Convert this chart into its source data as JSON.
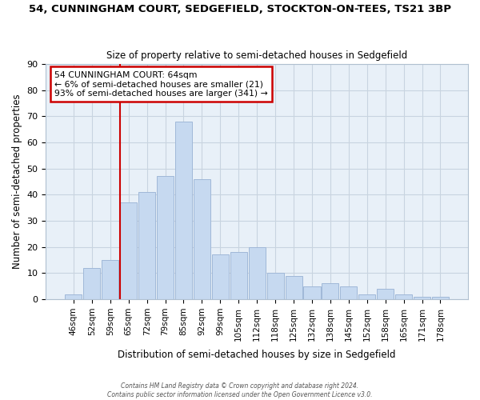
{
  "title_line1": "54, CUNNINGHAM COURT, SEDGEFIELD, STOCKTON-ON-TEES, TS21 3BP",
  "title_line2": "Size of property relative to semi-detached houses in Sedgefield",
  "xlabel": "Distribution of semi-detached houses by size in Sedgefield",
  "ylabel": "Number of semi-detached properties",
  "footer_line1": "Contains HM Land Registry data © Crown copyright and database right 2024.",
  "footer_line2": "Contains public sector information licensed under the Open Government Licence v3.0.",
  "bar_labels": [
    "46sqm",
    "52sqm",
    "59sqm",
    "65sqm",
    "72sqm",
    "79sqm",
    "85sqm",
    "92sqm",
    "99sqm",
    "105sqm",
    "112sqm",
    "118sqm",
    "125sqm",
    "132sqm",
    "138sqm",
    "145sqm",
    "152sqm",
    "158sqm",
    "165sqm",
    "171sqm",
    "178sqm"
  ],
  "bar_values": [
    2,
    12,
    15,
    37,
    41,
    47,
    68,
    46,
    17,
    18,
    20,
    10,
    9,
    5,
    6,
    5,
    2,
    4,
    2,
    1,
    1
  ],
  "bar_color": "#c6d9f0",
  "bar_edge_color": "#a0b8d8",
  "vline_x_index": 3,
  "vline_color": "#cc0000",
  "annotation_title": "54 CUNNINGHAM COURT: 64sqm",
  "annotation_line2": "← 6% of semi-detached houses are smaller (21)",
  "annotation_line3": "93% of semi-detached houses are larger (341) →",
  "annotation_box_edge": "#cc0000",
  "ylim": [
    0,
    90
  ],
  "yticks": [
    0,
    10,
    20,
    30,
    40,
    50,
    60,
    70,
    80,
    90
  ],
  "background_color": "#ffffff",
  "plot_bg_color": "#e8f0f8",
  "grid_color": "#c8d4e0"
}
